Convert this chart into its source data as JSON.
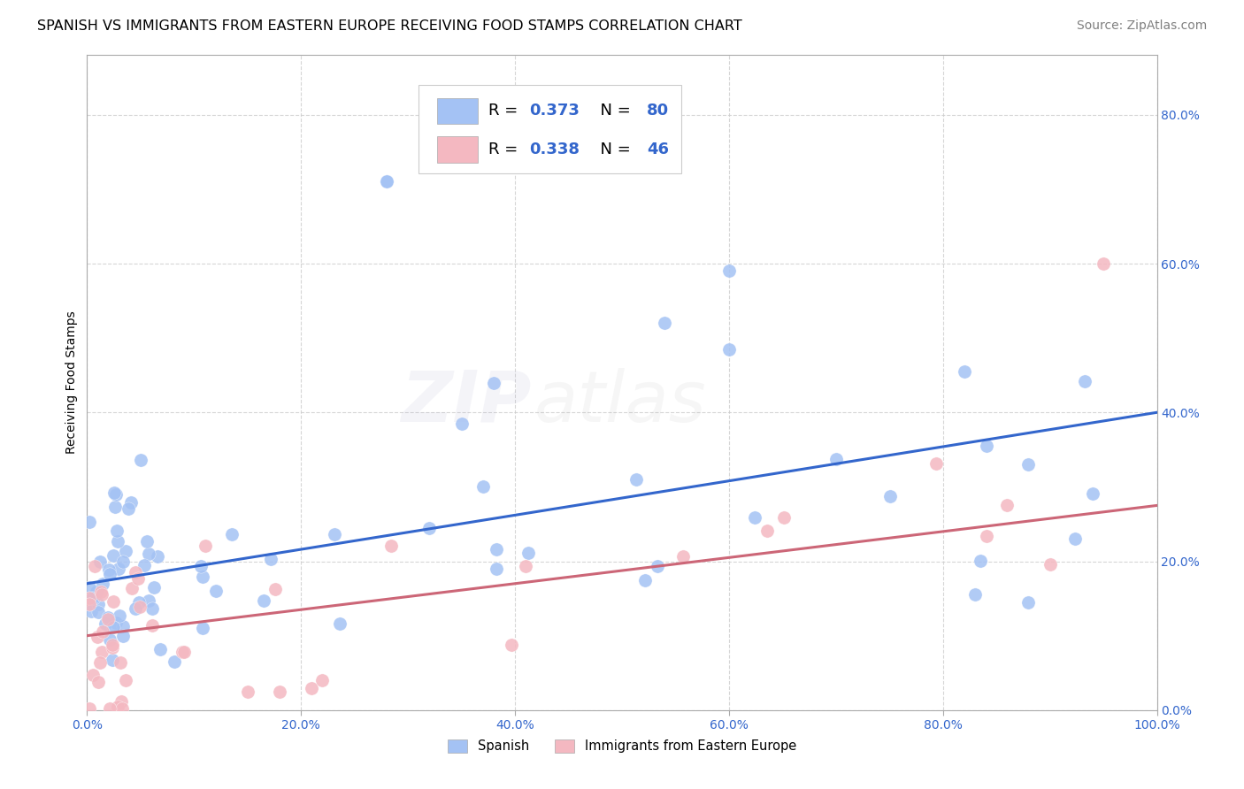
{
  "title": "SPANISH VS IMMIGRANTS FROM EASTERN EUROPE RECEIVING FOOD STAMPS CORRELATION CHART",
  "source": "Source: ZipAtlas.com",
  "ylabel": "Receiving Food Stamps",
  "watermark_zip": "ZIP",
  "watermark_atlas": "atlas",
  "xlim": [
    0,
    1.0
  ],
  "ylim": [
    0,
    0.88
  ],
  "xticks": [
    0.0,
    0.2,
    0.4,
    0.6,
    0.8,
    1.0
  ],
  "yticks": [
    0.0,
    0.2,
    0.4,
    0.6,
    0.8
  ],
  "xtick_labels": [
    "0.0%",
    "20.0%",
    "40.0%",
    "60.0%",
    "80.0%",
    "100.0%"
  ],
  "ytick_labels": [
    "0.0%",
    "20.0%",
    "40.0%",
    "60.0%",
    "80.0%"
  ],
  "blue_color": "#a4c2f4",
  "pink_color": "#f4b8c1",
  "blue_line_color": "#3366cc",
  "pink_line_color": "#cc6677",
  "legend_r1": "R = 0.373",
  "legend_n1": "N = 80",
  "legend_r2": "R = 0.338",
  "legend_n2": "N = 46",
  "legend_text_color": "#3366cc",
  "title_fontsize": 11.5,
  "source_fontsize": 10,
  "axis_label_fontsize": 10,
  "tick_fontsize": 10,
  "legend_fontsize": 13,
  "watermark_fontsize_zip": 58,
  "watermark_fontsize_atlas": 58,
  "watermark_alpha": 0.1,
  "background_color": "#ffffff",
  "grid_color": "#cccccc",
  "grid_alpha": 0.8
}
